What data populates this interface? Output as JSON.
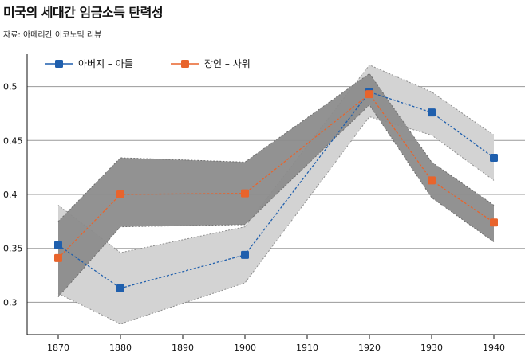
{
  "title": "미국의 세대간 임금소득 탄력성",
  "source": "자료: 아메리칸 이코노믹 리뷰",
  "colors": {
    "series1": "#1f5fad",
    "series2": "#e8642c",
    "band1": "#d3d3d3",
    "band2": "#8c8c8c",
    "grid": "#9a9a9a"
  },
  "chart_data": {
    "type": "line",
    "x": [
      1870,
      1880,
      1890,
      1900,
      1910,
      1920,
      1930,
      1940
    ],
    "xticklabels": [
      "1870",
      "1880",
      "1890",
      "1900",
      "1910",
      "1920",
      "1930",
      "1940"
    ],
    "yticks": [
      0.3,
      0.35,
      0.4,
      0.45,
      0.5
    ],
    "yticklabels": [
      "0.3",
      "0.35",
      "0.4",
      "0.45",
      "0.5"
    ],
    "xlim": [
      1865,
      1945
    ],
    "ylim": [
      0.27,
      0.53
    ],
    "grid": "horizontal",
    "legend_position": "top-left",
    "series": [
      {
        "name": "아버지 – 아들",
        "color": "#1f5fad",
        "points": [
          {
            "x": 1870,
            "y": 0.353
          },
          {
            "x": 1880,
            "y": 0.313
          },
          {
            "x": 1900,
            "y": 0.344
          },
          {
            "x": 1920,
            "y": 0.495
          },
          {
            "x": 1930,
            "y": 0.476
          },
          {
            "x": 1940,
            "y": 0.434
          }
        ],
        "upper": [
          0.39,
          0.346,
          0.37,
          0.52,
          0.495,
          0.455
        ],
        "lower": [
          0.308,
          0.28,
          0.318,
          0.472,
          0.455,
          0.413
        ]
      },
      {
        "name": "장인 – 사위",
        "color": "#e8642c",
        "points": [
          {
            "x": 1870,
            "y": 0.341
          },
          {
            "x": 1880,
            "y": 0.4
          },
          {
            "x": 1900,
            "y": 0.401
          },
          {
            "x": 1920,
            "y": 0.493
          },
          {
            "x": 1930,
            "y": 0.413
          },
          {
            "x": 1940,
            "y": 0.374
          }
        ],
        "upper": [
          0.375,
          0.434,
          0.43,
          0.512,
          0.43,
          0.39
        ],
        "lower": [
          0.305,
          0.37,
          0.372,
          0.483,
          0.397,
          0.356
        ]
      }
    ]
  }
}
